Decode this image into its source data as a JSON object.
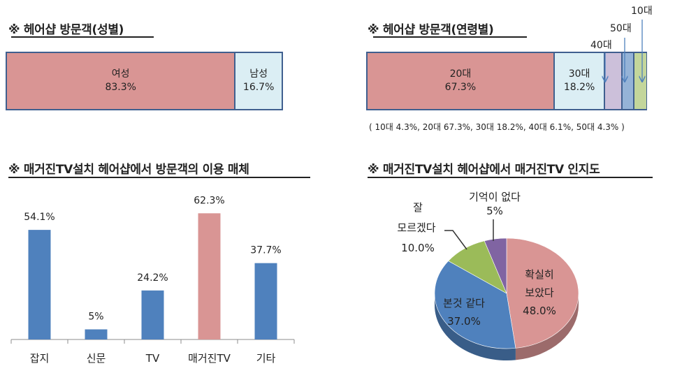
{
  "gender": {
    "title": "※ 헤어샵 방문객(성별)",
    "segments": [
      {
        "label": "여성",
        "value": "83.3%",
        "pct": 83.3,
        "color": "#d99594"
      },
      {
        "label": "남성",
        "value": "16.7%",
        "pct": 16.7,
        "color": "#dbeef4"
      }
    ]
  },
  "age": {
    "title": "※ 헤어샵 방문객(연령별)",
    "segments": [
      {
        "label": "20대",
        "value": "67.3%",
        "pct": 67.3,
        "color": "#d99594"
      },
      {
        "label": "30대",
        "value": "18.2%",
        "pct": 18.2,
        "color": "#dbeef4"
      },
      {
        "label": "40대",
        "pct": 6.1,
        "color": "#ccc0da"
      },
      {
        "label": "50대",
        "pct": 4.3,
        "color": "#95b3d7"
      },
      {
        "label": "10대",
        "pct": 4.3,
        "color": "#c3d69b"
      }
    ],
    "note": "( 10대 4.3%, 20대 67.3%, 30대 18.2%, 40대 6.1%, 50대 4.3% )"
  },
  "media": {
    "title": "※ 매거진TV설치 헤어샵에서 방문객의 이용 매체"
  },
  "awareness": {
    "title": "※ 매거진TV설치 헤어샵에서 매거진TV 인지도",
    "labels": {
      "sure": [
        "확실히",
        "보았다",
        "48.0%"
      ],
      "think": [
        "본것 같다",
        "37.0%"
      ],
      "unsure": [
        "잘",
        "모르겠다",
        "10.0%"
      ],
      "none": [
        "기억이 없다",
        "5%"
      ]
    }
  },
  "chart_data": [
    {
      "type": "bar",
      "title": "※ 헤어샵 방문객(성별)",
      "orientation": "horizontal-stacked",
      "categories": [
        "여성",
        "남성"
      ],
      "values": [
        83.3,
        16.7
      ]
    },
    {
      "type": "bar",
      "title": "※ 헤어샵 방문객(연령별)",
      "orientation": "horizontal-stacked",
      "categories": [
        "20대",
        "30대",
        "40대",
        "50대",
        "10대"
      ],
      "values": [
        67.3,
        18.2,
        6.1,
        4.3,
        4.3
      ]
    },
    {
      "type": "bar",
      "title": "※ 매거진TV설치 헤어샵에서 방문객의 이용 매체",
      "categories": [
        "잡지",
        "신문",
        "TV",
        "매거진TV",
        "기타"
      ],
      "values": [
        54.1,
        5,
        24.2,
        62.3,
        37.7
      ],
      "value_labels": [
        "54.1%",
        "5%",
        "24.2%",
        "62.3%",
        "37.7%"
      ],
      "colors": [
        "#4f81bd",
        "#4f81bd",
        "#4f81bd",
        "#d99594",
        "#4f81bd"
      ],
      "ylim": [
        0,
        100
      ],
      "grid": false
    },
    {
      "type": "pie",
      "title": "※ 매거진TV설치 헤어샵에서 매거진TV 인지도",
      "categories": [
        "확실히 보았다",
        "본것 같다",
        "잘 모르겠다",
        "기억이 없다"
      ],
      "values": [
        48.0,
        37.0,
        10.0,
        5
      ],
      "colors": [
        "#d99594",
        "#4f81bd",
        "#9bbb59",
        "#8064a2"
      ]
    }
  ]
}
